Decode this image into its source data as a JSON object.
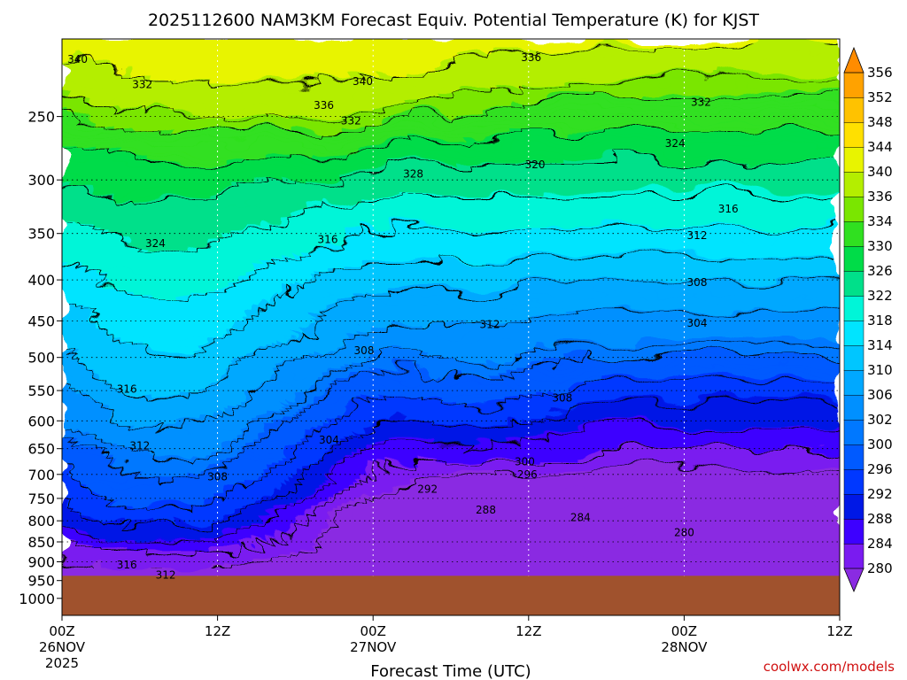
{
  "chart_data": {
    "type": "heatmap",
    "title": "2025112600 NAM3KM Forecast Equiv. Potential Temperature (K) for KJST",
    "xlabel": "Forecast Time (UTC)",
    "credit": "coolwx.com/models",
    "y_axis": {
      "scale": "log",
      "reversed": true,
      "range": [
        200,
        1050
      ],
      "ticks": [
        250,
        300,
        350,
        400,
        450,
        500,
        550,
        600,
        650,
        700,
        750,
        800,
        850,
        900,
        950,
        1000
      ],
      "tick_labels": [
        "250",
        "300",
        "350",
        "400",
        "450",
        "500",
        "550",
        "600",
        "650",
        "700",
        "750",
        "800",
        "850",
        "900",
        "950",
        "1000"
      ]
    },
    "x_axis": {
      "range_hours": [
        0,
        60
      ],
      "ticks": [
        {
          "hour": 0,
          "line1": "00Z",
          "line2": "26NOV",
          "line3": "2025"
        },
        {
          "hour": 12,
          "line1": "12Z",
          "line2": "",
          "line3": ""
        },
        {
          "hour": 24,
          "line1": "00Z",
          "line2": "27NOV",
          "line3": ""
        },
        {
          "hour": 36,
          "line1": "12Z",
          "line2": "",
          "line3": ""
        },
        {
          "hour": 48,
          "line1": "00Z",
          "line2": "28NOV",
          "line3": ""
        },
        {
          "hour": 60,
          "line1": "12Z",
          "line2": "",
          "line3": ""
        }
      ]
    },
    "grid": true,
    "ground_level_hpa": 937,
    "colorbar": {
      "levels": [
        280,
        284,
        288,
        292,
        296,
        300,
        302,
        306,
        310,
        314,
        318,
        322,
        326,
        330,
        334,
        336,
        340,
        344,
        348,
        352,
        356
      ],
      "tick_labels": [
        "280",
        "284",
        "288",
        "292",
        "296",
        "300",
        "302",
        "306",
        "310",
        "314",
        "318",
        "322",
        "326",
        "330",
        "334",
        "336",
        "340",
        "344",
        "348",
        "352",
        "356"
      ],
      "colors": [
        "#7a1bf0",
        "#3d00ff",
        "#0018e6",
        "#0038ff",
        "#005aff",
        "#0078ff",
        "#0090ff",
        "#00a8ff",
        "#00c6ff",
        "#00e4ff",
        "#00f5d8",
        "#00e08a",
        "#00dc48",
        "#30e020",
        "#7ae600",
        "#b4ee00",
        "#e8f400",
        "#ffe000",
        "#ffc200",
        "#ffa200"
      ],
      "over_color": "#ff8c00",
      "under_color": "#8a2be2"
    },
    "contour_labels": [
      {
        "text": "340",
        "hour": 1.2,
        "p": 212
      },
      {
        "text": "332",
        "hour": 6.2,
        "p": 228
      },
      {
        "text": "336",
        "hour": 20.2,
        "p": 242
      },
      {
        "text": "332",
        "hour": 22.3,
        "p": 253
      },
      {
        "text": "340",
        "hour": 23.2,
        "p": 226
      },
      {
        "text": "336",
        "hour": 36.2,
        "p": 211
      },
      {
        "text": "332",
        "hour": 49.3,
        "p": 240
      },
      {
        "text": "324",
        "hour": 47.3,
        "p": 270
      },
      {
        "text": "320",
        "hour": 36.5,
        "p": 287
      },
      {
        "text": "328",
        "hour": 27.1,
        "p": 295
      },
      {
        "text": "316",
        "hour": 51.4,
        "p": 326
      },
      {
        "text": "312",
        "hour": 49.0,
        "p": 352
      },
      {
        "text": "316",
        "hour": 20.5,
        "p": 356
      },
      {
        "text": "324",
        "hour": 7.2,
        "p": 360
      },
      {
        "text": "308",
        "hour": 49.0,
        "p": 403
      },
      {
        "text": "304",
        "hour": 49.0,
        "p": 453
      },
      {
        "text": "312",
        "hour": 33.0,
        "p": 455
      },
      {
        "text": "308",
        "hour": 23.3,
        "p": 490
      },
      {
        "text": "316",
        "hour": 5.0,
        "p": 548
      },
      {
        "text": "308",
        "hour": 38.6,
        "p": 562
      },
      {
        "text": "304",
        "hour": 20.6,
        "p": 634
      },
      {
        "text": "312",
        "hour": 6.0,
        "p": 645
      },
      {
        "text": "300",
        "hour": 35.7,
        "p": 675
      },
      {
        "text": "296",
        "hour": 35.9,
        "p": 700
      },
      {
        "text": "308",
        "hour": 12.0,
        "p": 705
      },
      {
        "text": "292",
        "hour": 28.2,
        "p": 730
      },
      {
        "text": "288",
        "hour": 32.7,
        "p": 775
      },
      {
        "text": "284",
        "hour": 40.0,
        "p": 792
      },
      {
        "text": "280",
        "hour": 48.0,
        "p": 827
      },
      {
        "text": "316",
        "hour": 5.0,
        "p": 908
      },
      {
        "text": "312",
        "hour": 8.0,
        "p": 935
      }
    ]
  }
}
